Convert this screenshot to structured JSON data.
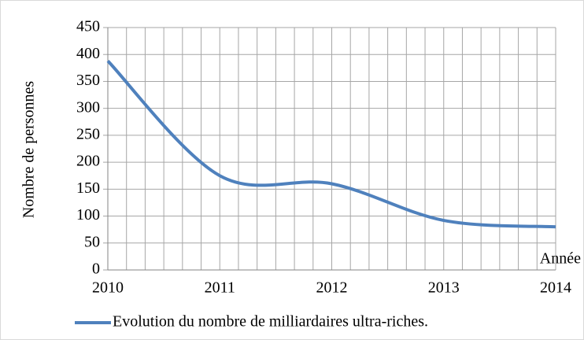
{
  "chart_data": {
    "type": "line",
    "x": [
      2010,
      2011,
      2012,
      2013,
      2014
    ],
    "series": [
      {
        "name": "Evolution du nombre de milliardaires ultra-riches.",
        "color": "#4f81bd",
        "values": [
          388,
          175,
          160,
          92,
          80
        ]
      }
    ],
    "xlim": [
      2010,
      2014
    ],
    "xticks": [
      2010,
      2011,
      2012,
      2013,
      2014
    ],
    "ylim": [
      0,
      450
    ],
    "yticks": [
      0,
      50,
      100,
      150,
      200,
      250,
      300,
      350,
      400,
      450
    ],
    "x_label": "Année",
    "y_label": "Nombre de personnes",
    "grid": true,
    "minor_divisions": 6,
    "smooth": true,
    "legend": "bottom"
  }
}
